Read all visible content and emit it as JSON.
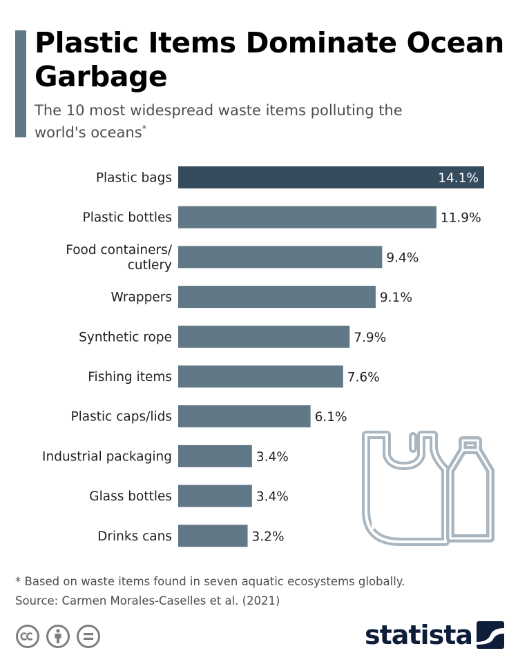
{
  "header": {
    "title": "Plastic Items Dominate Ocean Garbage",
    "subtitle": "The 10 most widespread waste items polluting the world's oceans",
    "subtitle_mark": "*"
  },
  "chart_data": {
    "type": "bar",
    "orientation": "horizontal",
    "title": "Plastic Items Dominate Ocean Garbage",
    "subtitle": "The 10 most widespread waste items polluting the world's oceans*",
    "categories": [
      [
        "Plastic bags"
      ],
      [
        "Plastic bottles"
      ],
      [
        "Food containers/",
        "cutlery"
      ],
      [
        "Wrappers"
      ],
      [
        "Synthetic rope"
      ],
      [
        "Fishing items"
      ],
      [
        "Plastic caps/lids"
      ],
      [
        "Industrial packaging"
      ],
      [
        "Glass bottles"
      ],
      [
        "Drinks cans"
      ]
    ],
    "values": [
      14.1,
      11.9,
      9.4,
      9.1,
      7.9,
      7.6,
      6.1,
      3.4,
      3.4,
      3.2
    ],
    "value_labels": [
      "14.1%",
      "11.9%",
      "9.4%",
      "9.1%",
      "7.9%",
      "7.6%",
      "6.1%",
      "3.4%",
      "3.4%",
      "3.2%"
    ],
    "unit": "%",
    "xlim": [
      0,
      14.1
    ],
    "grid": false,
    "legend": "none",
    "highlight_index": 0,
    "colors": {
      "bar": "#617887",
      "highlight": "#354b5e",
      "label": "#1f1f1f",
      "highlight_label": "#ffffff"
    }
  },
  "footer": {
    "note": "* Based on waste items found in seven aquatic ecosystems globally.",
    "source": "Source: Carmen Morales-Caselles et al. (2021)",
    "cc_icons": [
      "cc-icon",
      "attribution-icon",
      "no-derivatives-icon"
    ],
    "brand": "statista"
  },
  "illustration": {
    "icons": [
      "plastic-bag-icon",
      "plastic-bottle-icon"
    ]
  }
}
